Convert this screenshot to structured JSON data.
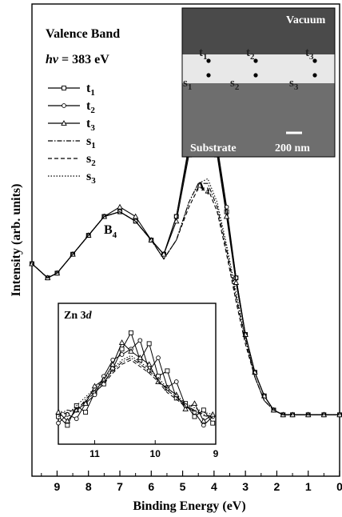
{
  "chart_data": [
    {
      "type": "line",
      "panel": "main",
      "annotations": {
        "title_line": "Valence Band",
        "energy_italic": "hν",
        "energy_value": " = 383 eV",
        "peak_A": "A",
        "peak_A_sub": "4",
        "peak_B": "B",
        "peak_B_sub": "4"
      },
      "xlabel": "Binding Energy (eV)",
      "ylabel": "Intensity (arb. units)",
      "xlim": [
        9.8,
        0
      ],
      "x_reversed": true,
      "x_ticks": [
        {
          "value": 9,
          "label": "9"
        },
        {
          "value": 8,
          "label": "8"
        },
        {
          "value": 7,
          "label": "7"
        },
        {
          "value": 6,
          "label": "6"
        },
        {
          "value": 5,
          "label": "5"
        },
        {
          "value": 4,
          "label": "4"
        },
        {
          "value": 3,
          "label": "3"
        },
        {
          "value": 2,
          "label": "2"
        },
        {
          "value": 1,
          "label": "1"
        },
        {
          "value": 0,
          "label": "0"
        }
      ],
      "ylim": [
        0,
        1.0
      ],
      "y_ticks_shown": false,
      "grid": false,
      "legend_placement": "top-left",
      "series": [
        {
          "name": "t",
          "sub": "1",
          "style": "solid",
          "marker": "square",
          "points": [
            [
              9.8,
              0.45
            ],
            [
              9.3,
              0.42
            ],
            [
              9.0,
              0.43
            ],
            [
              8.5,
              0.47
            ],
            [
              8.0,
              0.51
            ],
            [
              7.5,
              0.55
            ],
            [
              7.0,
              0.56
            ],
            [
              6.5,
              0.54
            ],
            [
              6.0,
              0.5
            ],
            [
              5.6,
              0.47
            ],
            [
              5.2,
              0.55
            ],
            [
              4.8,
              0.69
            ],
            [
              4.5,
              0.75
            ],
            [
              4.2,
              0.76
            ],
            [
              3.9,
              0.69
            ],
            [
              3.6,
              0.56
            ],
            [
              3.3,
              0.42
            ],
            [
              3.0,
              0.3
            ],
            [
              2.7,
              0.22
            ],
            [
              2.4,
              0.17
            ],
            [
              2.1,
              0.14
            ],
            [
              1.8,
              0.13
            ],
            [
              1.5,
              0.13
            ],
            [
              1.0,
              0.13
            ],
            [
              0.5,
              0.13
            ],
            [
              0.0,
              0.13
            ]
          ]
        },
        {
          "name": "t",
          "sub": "2",
          "style": "solid",
          "marker": "circle",
          "points": [
            [
              9.8,
              0.45
            ],
            [
              9.3,
              0.42
            ],
            [
              9.0,
              0.43
            ],
            [
              8.5,
              0.47
            ],
            [
              8.0,
              0.51
            ],
            [
              7.5,
              0.55
            ],
            [
              7.0,
              0.56
            ],
            [
              6.5,
              0.54
            ],
            [
              6.0,
              0.5
            ],
            [
              5.6,
              0.47
            ],
            [
              5.2,
              0.55
            ],
            [
              4.8,
              0.7
            ],
            [
              4.5,
              0.77
            ],
            [
              4.2,
              0.78
            ],
            [
              3.9,
              0.7
            ],
            [
              3.6,
              0.57
            ],
            [
              3.3,
              0.42
            ],
            [
              3.0,
              0.3
            ],
            [
              2.7,
              0.22
            ],
            [
              2.4,
              0.17
            ],
            [
              2.1,
              0.14
            ],
            [
              1.8,
              0.13
            ],
            [
              1.5,
              0.13
            ],
            [
              1.0,
              0.13
            ],
            [
              0.5,
              0.13
            ],
            [
              0.0,
              0.13
            ]
          ]
        },
        {
          "name": "t",
          "sub": "3",
          "style": "solid",
          "marker": "triangle",
          "points": [
            [
              9.8,
              0.45
            ],
            [
              9.3,
              0.42
            ],
            [
              9.0,
              0.43
            ],
            [
              8.5,
              0.47
            ],
            [
              8.0,
              0.51
            ],
            [
              7.5,
              0.55
            ],
            [
              7.0,
              0.57
            ],
            [
              6.5,
              0.55
            ],
            [
              6.0,
              0.5
            ],
            [
              5.6,
              0.47
            ],
            [
              5.2,
              0.54
            ],
            [
              4.8,
              0.68
            ],
            [
              4.5,
              0.74
            ],
            [
              4.2,
              0.75
            ],
            [
              3.9,
              0.68
            ],
            [
              3.6,
              0.55
            ],
            [
              3.3,
              0.41
            ],
            [
              3.0,
              0.3
            ],
            [
              2.7,
              0.22
            ],
            [
              2.4,
              0.17
            ],
            [
              2.1,
              0.14
            ],
            [
              1.8,
              0.13
            ],
            [
              1.5,
              0.13
            ],
            [
              1.0,
              0.13
            ],
            [
              0.5,
              0.13
            ],
            [
              0.0,
              0.13
            ]
          ]
        },
        {
          "name": "s",
          "sub": "1",
          "style": "dashdot",
          "marker": "none",
          "points": [
            [
              9.8,
              0.45
            ],
            [
              9.3,
              0.42
            ],
            [
              9.0,
              0.43
            ],
            [
              8.5,
              0.47
            ],
            [
              8.0,
              0.51
            ],
            [
              7.5,
              0.55
            ],
            [
              7.0,
              0.56
            ],
            [
              6.5,
              0.54
            ],
            [
              6.0,
              0.5
            ],
            [
              5.6,
              0.46
            ],
            [
              5.2,
              0.5
            ],
            [
              4.8,
              0.58
            ],
            [
              4.5,
              0.62
            ],
            [
              4.2,
              0.62
            ],
            [
              3.9,
              0.57
            ],
            [
              3.6,
              0.48
            ],
            [
              3.3,
              0.38
            ],
            [
              3.0,
              0.29
            ],
            [
              2.7,
              0.21
            ],
            [
              2.4,
              0.16
            ],
            [
              2.1,
              0.14
            ],
            [
              1.8,
              0.13
            ],
            [
              1.5,
              0.13
            ],
            [
              1.0,
              0.13
            ],
            [
              0.5,
              0.13
            ],
            [
              0.0,
              0.13
            ]
          ]
        },
        {
          "name": "s",
          "sub": "2",
          "style": "dashed",
          "marker": "none",
          "points": [
            [
              9.8,
              0.45
            ],
            [
              9.3,
              0.42
            ],
            [
              9.0,
              0.43
            ],
            [
              8.5,
              0.47
            ],
            [
              8.0,
              0.51
            ],
            [
              7.5,
              0.55
            ],
            [
              7.0,
              0.56
            ],
            [
              6.5,
              0.54
            ],
            [
              6.0,
              0.5
            ],
            [
              5.6,
              0.46
            ],
            [
              5.2,
              0.5
            ],
            [
              4.8,
              0.57
            ],
            [
              4.5,
              0.61
            ],
            [
              4.2,
              0.61
            ],
            [
              3.9,
              0.56
            ],
            [
              3.6,
              0.47
            ],
            [
              3.3,
              0.37
            ],
            [
              3.0,
              0.28
            ],
            [
              2.7,
              0.21
            ],
            [
              2.4,
              0.16
            ],
            [
              2.1,
              0.14
            ],
            [
              1.8,
              0.13
            ],
            [
              1.5,
              0.13
            ],
            [
              1.0,
              0.13
            ],
            [
              0.5,
              0.13
            ],
            [
              0.0,
              0.13
            ]
          ]
        },
        {
          "name": "s",
          "sub": "3",
          "style": "dotted",
          "marker": "none",
          "points": [
            [
              9.8,
              0.45
            ],
            [
              9.3,
              0.42
            ],
            [
              9.0,
              0.43
            ],
            [
              8.5,
              0.47
            ],
            [
              8.0,
              0.51
            ],
            [
              7.5,
              0.55
            ],
            [
              7.0,
              0.56
            ],
            [
              6.5,
              0.54
            ],
            [
              6.0,
              0.5
            ],
            [
              5.6,
              0.46
            ],
            [
              5.2,
              0.5
            ],
            [
              4.8,
              0.58
            ],
            [
              4.5,
              0.62
            ],
            [
              4.2,
              0.63
            ],
            [
              3.9,
              0.58
            ],
            [
              3.6,
              0.49
            ],
            [
              3.3,
              0.39
            ],
            [
              3.0,
              0.29
            ],
            [
              2.7,
              0.21
            ],
            [
              2.4,
              0.16
            ],
            [
              2.1,
              0.14
            ],
            [
              1.8,
              0.13
            ],
            [
              1.5,
              0.13
            ],
            [
              1.0,
              0.13
            ],
            [
              0.5,
              0.13
            ],
            [
              0.0,
              0.13
            ]
          ]
        }
      ]
    },
    {
      "type": "line",
      "panel": "inset",
      "title": "Zn 3",
      "title_italic": "d",
      "xlim": [
        11.6,
        9.0
      ],
      "x_reversed": true,
      "x_ticks": [
        {
          "value": 11,
          "label": "11"
        },
        {
          "value": 10,
          "label": "10"
        },
        {
          "value": 9,
          "label": "9"
        }
      ],
      "ylim": [
        0,
        1.0
      ],
      "x": [
        11.6,
        11.45,
        11.3,
        11.15,
        11.0,
        10.85,
        10.7,
        10.55,
        10.4,
        10.25,
        10.1,
        9.95,
        9.8,
        9.65,
        9.5,
        9.35,
        9.2,
        9.05
      ],
      "series": [
        {
          "name": "t",
          "sub": "1",
          "values": [
            0.18,
            0.1,
            0.28,
            0.22,
            0.4,
            0.48,
            0.62,
            0.8,
            0.95,
            0.7,
            0.85,
            0.55,
            0.6,
            0.35,
            0.3,
            0.18,
            0.24,
            0.12
          ]
        },
        {
          "name": "t",
          "sub": "2",
          "values": [
            0.12,
            0.2,
            0.16,
            0.3,
            0.38,
            0.55,
            0.7,
            0.75,
            0.8,
            0.88,
            0.6,
            0.72,
            0.45,
            0.5,
            0.28,
            0.22,
            0.1,
            0.18
          ]
        },
        {
          "name": "t",
          "sub": "3",
          "values": [
            0.22,
            0.14,
            0.24,
            0.3,
            0.46,
            0.52,
            0.66,
            0.86,
            0.78,
            0.72,
            0.66,
            0.5,
            0.44,
            0.38,
            0.25,
            0.3,
            0.14,
            0.2
          ]
        },
        {
          "name": "s",
          "sub": "1",
          "values": [
            0.2,
            0.24,
            0.22,
            0.34,
            0.42,
            0.5,
            0.6,
            0.68,
            0.72,
            0.66,
            0.6,
            0.52,
            0.42,
            0.36,
            0.28,
            0.24,
            0.2,
            0.18
          ]
        },
        {
          "name": "s",
          "sub": "2",
          "values": [
            0.18,
            0.22,
            0.25,
            0.32,
            0.4,
            0.48,
            0.58,
            0.66,
            0.7,
            0.64,
            0.58,
            0.5,
            0.4,
            0.34,
            0.27,
            0.23,
            0.19,
            0.17
          ]
        },
        {
          "name": "s",
          "sub": "3",
          "values": [
            0.24,
            0.2,
            0.28,
            0.36,
            0.44,
            0.52,
            0.62,
            0.7,
            0.74,
            0.68,
            0.62,
            0.54,
            0.44,
            0.38,
            0.3,
            0.26,
            0.22,
            0.2
          ]
        }
      ]
    }
  ],
  "micrograph": {
    "label_top": "Vacuum",
    "label_bottom": "Substrate",
    "scale_bar": "200 nm",
    "points": [
      {
        "name": "t",
        "sub": "1"
      },
      {
        "name": "t",
        "sub": "2"
      },
      {
        "name": "t",
        "sub": "3"
      },
      {
        "name": "s",
        "sub": "1"
      },
      {
        "name": "s",
        "sub": "2"
      },
      {
        "name": "s",
        "sub": "3"
      }
    ],
    "colors": {
      "vacuum": "#4a4a4a",
      "interface": "#e8e8e8",
      "substrate": "#6e6e6e",
      "text": "#ffffff",
      "markers": "#000000"
    }
  }
}
